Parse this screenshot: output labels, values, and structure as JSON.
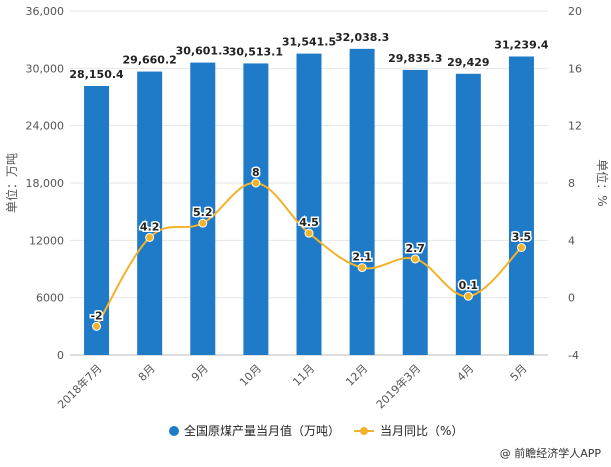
{
  "chart_data": {
    "type": "bar+line",
    "categories": [
      "2018年7月",
      "8月",
      "9月",
      "10月",
      "11月",
      "12月",
      "2019年3月",
      "4月",
      "5月"
    ],
    "series": [
      {
        "name": "全国原煤产量当月值（万吨）",
        "type": "bar",
        "axis": "left",
        "values": [
          28150.4,
          29660.2,
          30601.3,
          30513.1,
          31541.5,
          32038.3,
          29835.3,
          29429,
          31239.4
        ],
        "labels": [
          "28,150.4",
          "29,660.2",
          "30,601.3",
          "30,513.1",
          "31,541.5",
          "32,038.3",
          "29,835.3",
          "29,429",
          "31,239.4"
        ]
      },
      {
        "name": "当月同比（%）",
        "type": "line",
        "axis": "right",
        "values": [
          -2,
          4.2,
          5.2,
          8,
          4.5,
          2.1,
          2.7,
          0.1,
          3.5
        ],
        "labels": [
          "-2",
          "4.2",
          "5.2",
          "8",
          "4.5",
          "2.1",
          "2.7",
          "0.1",
          "3.5"
        ]
      }
    ],
    "y_left": {
      "label": "单位：万吨",
      "range": [
        0,
        36000
      ],
      "ticks": [
        0,
        6000,
        12000,
        18000,
        24000,
        30000,
        36000
      ],
      "tick_labels": [
        "0",
        "6000",
        "12000",
        "18,000",
        "24,000",
        "30,000",
        "36,000"
      ]
    },
    "y_right": {
      "label": "单位：%",
      "range": [
        -4,
        20
      ],
      "ticks": [
        -4,
        0,
        4,
        8,
        12,
        16,
        20
      ],
      "tick_labels": [
        "-4",
        "0",
        "4",
        "8",
        "12",
        "16",
        "20"
      ]
    },
    "legend_position": "bottom",
    "colors": {
      "bar": "#1f7bc7",
      "line": "#f2b229"
    }
  },
  "source_text": "@ 前瞻经济学人APP"
}
